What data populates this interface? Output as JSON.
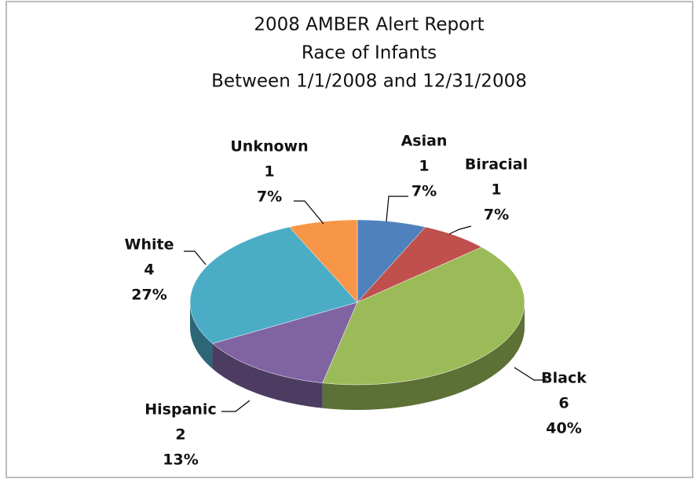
{
  "chart_data": {
    "type": "pie",
    "title": [
      "2008 AMBER Alert Report",
      "Race of Infants",
      "Between 1/1/2008 and 12/31/2008"
    ],
    "categories": [
      "Asian",
      "Biracial",
      "Black",
      "Hispanic",
      "White",
      "Unknown"
    ],
    "values": [
      1,
      1,
      6,
      2,
      4,
      1
    ],
    "percents": [
      7,
      7,
      40,
      13,
      27,
      7
    ],
    "percent_labels": [
      "7%",
      "7%",
      "40%",
      "13%",
      "27%",
      "7%"
    ],
    "colors": [
      "#4f81bd",
      "#c0504d",
      "#9bbb59",
      "#8064a2",
      "#4bacc6",
      "#f79646"
    ]
  }
}
